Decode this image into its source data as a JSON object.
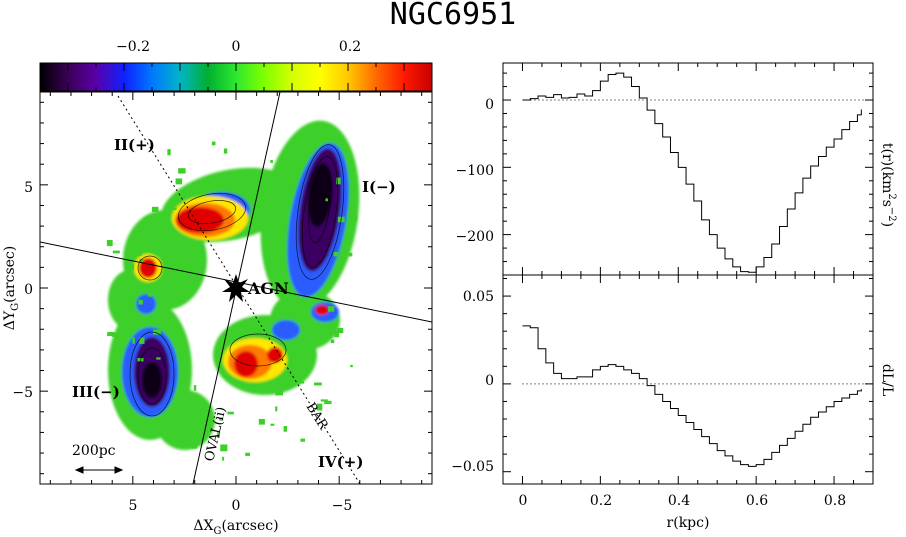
{
  "title": "NGC6951",
  "colorbar": {
    "ticks": [
      "−0.2",
      "0",
      "0.2"
    ],
    "values": [
      -0.2,
      0,
      0.2
    ],
    "range": [
      -0.35,
      0.35
    ],
    "stops": [
      "#000000",
      "#3a0055",
      "#5a00a8",
      "#1020ff",
      "#0078ff",
      "#00b4c8",
      "#00b030",
      "#2ee82e",
      "#7fff00",
      "#d4ff00",
      "#ffff00",
      "#ffc800",
      "#ff6a00",
      "#ff1a00",
      "#c80000"
    ]
  },
  "map": {
    "xlabel": "ΔX",
    "xlabel_sub": "G",
    "xlabel_unit": "(arcsec)",
    "ylabel": "ΔY",
    "ylabel_sub": "G",
    "ylabel_unit": "(arcsec)",
    "xticks": [
      "5",
      "0",
      "−5"
    ],
    "yticks": [
      "5",
      "0",
      "−5"
    ],
    "xlim": [
      9.5,
      -9.5
    ],
    "ylim": [
      -9.5,
      9.5
    ],
    "quadrants": {
      "q1": "I(−)",
      "q2": "II(+)",
      "q3": "III(−)",
      "q4": "IV(+)"
    },
    "agn_label": "AGN",
    "oval_label": "OVAL(ii)",
    "bar_label": "BAR",
    "scale_bar_label": "200pc"
  },
  "chart_data": [
    {
      "type": "line",
      "ylabel": "t(r)(km²s⁻²)",
      "ylabel_main": "t(r)(km",
      "ylabel_sup": "2",
      "ylabel_mid": "s",
      "ylabel_sup2": "−2",
      "ylabel_end": ")",
      "xlim": [
        -0.05,
        0.9
      ],
      "ylim": [
        -260,
        55
      ],
      "yticks": [
        0,
        -100,
        -200
      ],
      "yticklabels": [
        "0",
        "−100",
        "−200"
      ],
      "x": [
        0.0,
        0.02,
        0.04,
        0.06,
        0.08,
        0.1,
        0.12,
        0.14,
        0.16,
        0.18,
        0.2,
        0.22,
        0.24,
        0.26,
        0.28,
        0.3,
        0.32,
        0.34,
        0.36,
        0.38,
        0.4,
        0.42,
        0.44,
        0.46,
        0.48,
        0.5,
        0.52,
        0.54,
        0.56,
        0.58,
        0.6,
        0.62,
        0.64,
        0.66,
        0.68,
        0.7,
        0.72,
        0.74,
        0.76,
        0.78,
        0.8,
        0.82,
        0.84,
        0.86,
        0.87
      ],
      "y": [
        0,
        2,
        6,
        4,
        8,
        3,
        4,
        9,
        6,
        14,
        28,
        38,
        40,
        34,
        20,
        3,
        -15,
        -35,
        -55,
        -78,
        -100,
        -125,
        -150,
        -178,
        -200,
        -220,
        -236,
        -248,
        -255,
        -256,
        -248,
        -234,
        -214,
        -188,
        -162,
        -138,
        -116,
        -98,
        -84,
        -70,
        -58,
        -44,
        -32,
        -22,
        -14
      ]
    },
    {
      "type": "line",
      "ylabel": "dL/L",
      "xlabel": "r(kpc)",
      "xlim": [
        -0.05,
        0.9
      ],
      "ylim": [
        -0.057,
        0.062
      ],
      "xticks": [
        0,
        0.2,
        0.4,
        0.6,
        0.8
      ],
      "xticklabels": [
        "0",
        "0.2",
        "0.4",
        "0.6",
        "0.8"
      ],
      "yticks": [
        0.05,
        0,
        -0.05
      ],
      "yticklabels": [
        "0.05",
        "0",
        "−0.05"
      ],
      "x": [
        0.0,
        0.02,
        0.04,
        0.06,
        0.08,
        0.1,
        0.12,
        0.14,
        0.16,
        0.18,
        0.2,
        0.22,
        0.24,
        0.26,
        0.28,
        0.3,
        0.32,
        0.34,
        0.36,
        0.38,
        0.4,
        0.42,
        0.44,
        0.46,
        0.48,
        0.5,
        0.52,
        0.54,
        0.56,
        0.58,
        0.6,
        0.62,
        0.64,
        0.66,
        0.68,
        0.7,
        0.72,
        0.74,
        0.76,
        0.78,
        0.8,
        0.82,
        0.84,
        0.86,
        0.87
      ],
      "y": [
        0.033,
        0.032,
        0.02,
        0.012,
        0.006,
        0.003,
        0.003,
        0.004,
        0.004,
        0.008,
        0.01,
        0.011,
        0.01,
        0.008,
        0.006,
        0.003,
        -0.001,
        -0.006,
        -0.01,
        -0.014,
        -0.018,
        -0.022,
        -0.026,
        -0.03,
        -0.034,
        -0.038,
        -0.041,
        -0.044,
        -0.046,
        -0.047,
        -0.046,
        -0.043,
        -0.039,
        -0.035,
        -0.031,
        -0.027,
        -0.023,
        -0.019,
        -0.016,
        -0.013,
        -0.01,
        -0.008,
        -0.006,
        -0.004,
        -0.003
      ]
    }
  ]
}
